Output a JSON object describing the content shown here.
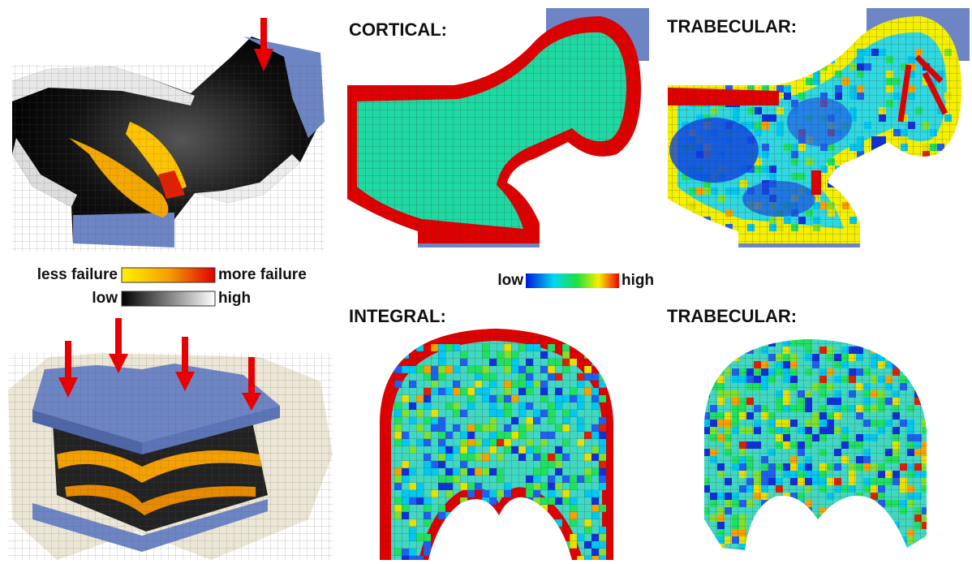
{
  "panels": {
    "cortical": "CORTICAL:",
    "trabecular_top": "TRABECULAR:",
    "integral": "INTEGRAL:",
    "trabecular_bottom": "TRABECULAR:"
  },
  "failure_legend": {
    "low_label": "less failure",
    "high_label": "more failure"
  },
  "density_legend": {
    "low_label": "low",
    "high_label": "high"
  },
  "color_legend": {
    "low_label": "low",
    "high_label": "high"
  }
}
